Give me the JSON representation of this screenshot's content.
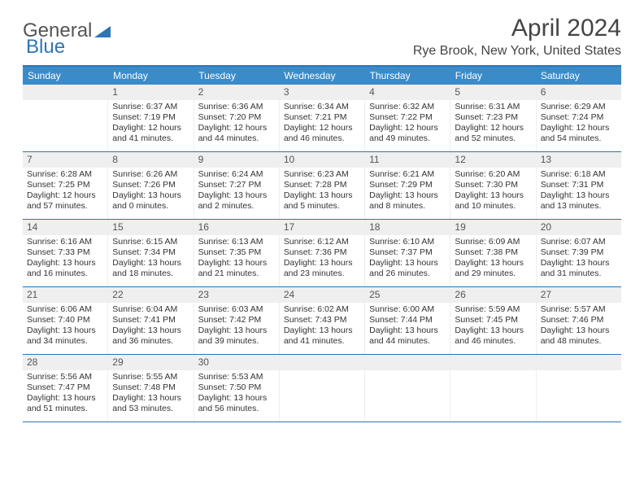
{
  "brand": {
    "word1": "General",
    "word2": "Blue"
  },
  "title": "April 2024",
  "location": "Rye Brook, New York, United States",
  "colors": {
    "header_bg": "#3b8bc9",
    "header_border": "#2e75b6",
    "daynum_bg": "#efefef",
    "text": "#333333"
  },
  "dow": [
    "Sunday",
    "Monday",
    "Tuesday",
    "Wednesday",
    "Thursday",
    "Friday",
    "Saturday"
  ],
  "weeks": [
    [
      {
        "n": "",
        "lines": []
      },
      {
        "n": "1",
        "lines": [
          "Sunrise: 6:37 AM",
          "Sunset: 7:19 PM",
          "Daylight: 12 hours and 41 minutes."
        ]
      },
      {
        "n": "2",
        "lines": [
          "Sunrise: 6:36 AM",
          "Sunset: 7:20 PM",
          "Daylight: 12 hours and 44 minutes."
        ]
      },
      {
        "n": "3",
        "lines": [
          "Sunrise: 6:34 AM",
          "Sunset: 7:21 PM",
          "Daylight: 12 hours and 46 minutes."
        ]
      },
      {
        "n": "4",
        "lines": [
          "Sunrise: 6:32 AM",
          "Sunset: 7:22 PM",
          "Daylight: 12 hours and 49 minutes."
        ]
      },
      {
        "n": "5",
        "lines": [
          "Sunrise: 6:31 AM",
          "Sunset: 7:23 PM",
          "Daylight: 12 hours and 52 minutes."
        ]
      },
      {
        "n": "6",
        "lines": [
          "Sunrise: 6:29 AM",
          "Sunset: 7:24 PM",
          "Daylight: 12 hours and 54 minutes."
        ]
      }
    ],
    [
      {
        "n": "7",
        "lines": [
          "Sunrise: 6:28 AM",
          "Sunset: 7:25 PM",
          "Daylight: 12 hours and 57 minutes."
        ]
      },
      {
        "n": "8",
        "lines": [
          "Sunrise: 6:26 AM",
          "Sunset: 7:26 PM",
          "Daylight: 13 hours and 0 minutes."
        ]
      },
      {
        "n": "9",
        "lines": [
          "Sunrise: 6:24 AM",
          "Sunset: 7:27 PM",
          "Daylight: 13 hours and 2 minutes."
        ]
      },
      {
        "n": "10",
        "lines": [
          "Sunrise: 6:23 AM",
          "Sunset: 7:28 PM",
          "Daylight: 13 hours and 5 minutes."
        ]
      },
      {
        "n": "11",
        "lines": [
          "Sunrise: 6:21 AM",
          "Sunset: 7:29 PM",
          "Daylight: 13 hours and 8 minutes."
        ]
      },
      {
        "n": "12",
        "lines": [
          "Sunrise: 6:20 AM",
          "Sunset: 7:30 PM",
          "Daylight: 13 hours and 10 minutes."
        ]
      },
      {
        "n": "13",
        "lines": [
          "Sunrise: 6:18 AM",
          "Sunset: 7:31 PM",
          "Daylight: 13 hours and 13 minutes."
        ]
      }
    ],
    [
      {
        "n": "14",
        "lines": [
          "Sunrise: 6:16 AM",
          "Sunset: 7:33 PM",
          "Daylight: 13 hours and 16 minutes."
        ]
      },
      {
        "n": "15",
        "lines": [
          "Sunrise: 6:15 AM",
          "Sunset: 7:34 PM",
          "Daylight: 13 hours and 18 minutes."
        ]
      },
      {
        "n": "16",
        "lines": [
          "Sunrise: 6:13 AM",
          "Sunset: 7:35 PM",
          "Daylight: 13 hours and 21 minutes."
        ]
      },
      {
        "n": "17",
        "lines": [
          "Sunrise: 6:12 AM",
          "Sunset: 7:36 PM",
          "Daylight: 13 hours and 23 minutes."
        ]
      },
      {
        "n": "18",
        "lines": [
          "Sunrise: 6:10 AM",
          "Sunset: 7:37 PM",
          "Daylight: 13 hours and 26 minutes."
        ]
      },
      {
        "n": "19",
        "lines": [
          "Sunrise: 6:09 AM",
          "Sunset: 7:38 PM",
          "Daylight: 13 hours and 29 minutes."
        ]
      },
      {
        "n": "20",
        "lines": [
          "Sunrise: 6:07 AM",
          "Sunset: 7:39 PM",
          "Daylight: 13 hours and 31 minutes."
        ]
      }
    ],
    [
      {
        "n": "21",
        "lines": [
          "Sunrise: 6:06 AM",
          "Sunset: 7:40 PM",
          "Daylight: 13 hours and 34 minutes."
        ]
      },
      {
        "n": "22",
        "lines": [
          "Sunrise: 6:04 AM",
          "Sunset: 7:41 PM",
          "Daylight: 13 hours and 36 minutes."
        ]
      },
      {
        "n": "23",
        "lines": [
          "Sunrise: 6:03 AM",
          "Sunset: 7:42 PM",
          "Daylight: 13 hours and 39 minutes."
        ]
      },
      {
        "n": "24",
        "lines": [
          "Sunrise: 6:02 AM",
          "Sunset: 7:43 PM",
          "Daylight: 13 hours and 41 minutes."
        ]
      },
      {
        "n": "25",
        "lines": [
          "Sunrise: 6:00 AM",
          "Sunset: 7:44 PM",
          "Daylight: 13 hours and 44 minutes."
        ]
      },
      {
        "n": "26",
        "lines": [
          "Sunrise: 5:59 AM",
          "Sunset: 7:45 PM",
          "Daylight: 13 hours and 46 minutes."
        ]
      },
      {
        "n": "27",
        "lines": [
          "Sunrise: 5:57 AM",
          "Sunset: 7:46 PM",
          "Daylight: 13 hours and 48 minutes."
        ]
      }
    ],
    [
      {
        "n": "28",
        "lines": [
          "Sunrise: 5:56 AM",
          "Sunset: 7:47 PM",
          "Daylight: 13 hours and 51 minutes."
        ]
      },
      {
        "n": "29",
        "lines": [
          "Sunrise: 5:55 AM",
          "Sunset: 7:48 PM",
          "Daylight: 13 hours and 53 minutes."
        ]
      },
      {
        "n": "30",
        "lines": [
          "Sunrise: 5:53 AM",
          "Sunset: 7:50 PM",
          "Daylight: 13 hours and 56 minutes."
        ]
      },
      {
        "n": "",
        "lines": []
      },
      {
        "n": "",
        "lines": []
      },
      {
        "n": "",
        "lines": []
      },
      {
        "n": "",
        "lines": []
      }
    ]
  ]
}
